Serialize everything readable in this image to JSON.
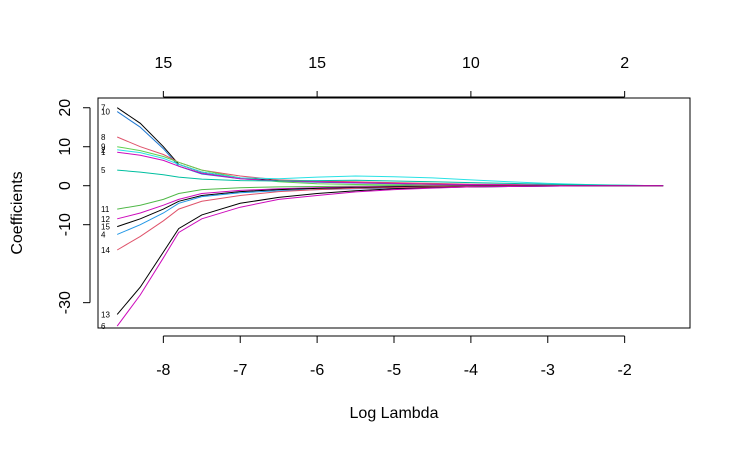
{
  "chart_data": {
    "type": "line",
    "title": "",
    "xlabel": "Log Lambda",
    "ylabel": "Coefficients",
    "xlim": [
      -8.85,
      -1.15
    ],
    "ylim": [
      -36.5,
      22.5
    ],
    "x_ticks": [
      -8,
      -7,
      -6,
      -5,
      -4,
      -3,
      -2
    ],
    "x_tick_labels": [
      "-8",
      "-7",
      "-6",
      "-5",
      "-4",
      "-3",
      "-2"
    ],
    "y_ticks": [
      20,
      10,
      0,
      -10,
      -30
    ],
    "y_tick_labels": [
      "20",
      "10",
      "0",
      "-10",
      "-30"
    ],
    "top_axis": {
      "positions": [
        -8,
        -6,
        -4,
        -2
      ],
      "labels": [
        "15",
        "15",
        "10",
        "2"
      ]
    },
    "grid": false,
    "legend": "none",
    "x": [
      -8.6,
      -8.3,
      -8.0,
      -7.8,
      -7.5,
      -7.0,
      -6.5,
      -6.0,
      -5.5,
      -5.0,
      -4.5,
      -4.0,
      -3.5,
      -3.0,
      -2.5,
      -2.0,
      -1.5
    ],
    "series": [
      {
        "label": "7",
        "color": "#000000",
        "label_y": 20.0,
        "values": [
          20.0,
          16.0,
          10.0,
          5.5,
          3.5,
          2.0,
          1.3,
          1.0,
          0.8,
          0.6,
          0.4,
          0.3,
          0.2,
          0.1,
          0.05,
          0.0,
          0.0
        ]
      },
      {
        "label": "10",
        "color": "#1f78d1",
        "label_y": 19.0,
        "values": [
          19.0,
          15.0,
          9.5,
          5.0,
          3.0,
          1.8,
          1.2,
          0.9,
          0.7,
          0.5,
          0.4,
          0.3,
          0.2,
          0.1,
          0.05,
          0.0,
          0.0
        ]
      },
      {
        "label": "8",
        "color": "#df536b",
        "label_y": 12.5,
        "values": [
          12.5,
          10.0,
          8.0,
          6.0,
          4.0,
          2.5,
          1.5,
          1.2,
          1.0,
          0.8,
          0.6,
          0.4,
          0.3,
          0.2,
          0.1,
          0.05,
          0.0
        ]
      },
      {
        "label": "9",
        "color": "#61d04f",
        "label_y": 10.0,
        "values": [
          10.0,
          9.0,
          7.5,
          6.0,
          4.0,
          2.0,
          1.0,
          0.5,
          0.3,
          0.2,
          0.1,
          0.0,
          0.0,
          0.0,
          0.0,
          0.0,
          0.0
        ]
      },
      {
        "label": "2",
        "color": "#28e2e5",
        "label_y": 9.2,
        "values": [
          9.2,
          8.5,
          7.0,
          5.5,
          3.5,
          2.0,
          1.8,
          2.2,
          2.5,
          2.3,
          2.0,
          1.5,
          1.0,
          0.6,
          0.3,
          0.1,
          0.0
        ]
      },
      {
        "label": "1",
        "color": "#cd0bbc",
        "label_y": 8.6,
        "values": [
          8.6,
          7.8,
          6.5,
          5.0,
          3.2,
          1.8,
          1.2,
          1.0,
          0.8,
          0.6,
          0.4,
          0.3,
          0.2,
          0.1,
          0.05,
          0.0,
          0.0
        ]
      },
      {
        "label": "5",
        "color": "#00bfa0",
        "label_y": 4.0,
        "values": [
          4.0,
          3.5,
          2.8,
          2.2,
          1.7,
          1.3,
          1.2,
          1.3,
          1.4,
          1.2,
          1.0,
          0.8,
          0.6,
          0.4,
          0.2,
          0.1,
          0.0
        ]
      },
      {
        "label": "11",
        "color": "#50b848",
        "label_y": -6.0,
        "values": [
          -6.0,
          -5.0,
          -3.5,
          -2.0,
          -1.0,
          -0.5,
          -0.3,
          -0.2,
          -0.1,
          0.0,
          0.0,
          0.0,
          0.0,
          0.0,
          0.0,
          0.0,
          0.0
        ]
      },
      {
        "label": "12",
        "color": "#cd0bbc",
        "label_y": -8.5,
        "values": [
          -8.5,
          -7.0,
          -5.0,
          -3.5,
          -2.0,
          -1.2,
          -0.8,
          -0.5,
          -0.3,
          -0.2,
          -0.1,
          0.0,
          0.0,
          0.0,
          0.0,
          0.0,
          0.0
        ]
      },
      {
        "label": "15",
        "color": "#000000",
        "label_y": -10.5,
        "values": [
          -10.5,
          -8.5,
          -6.0,
          -4.0,
          -2.5,
          -1.5,
          -1.0,
          -0.7,
          -0.5,
          -0.3,
          -0.2,
          -0.1,
          0.0,
          0.0,
          0.0,
          0.0,
          0.0
        ]
      },
      {
        "label": "4",
        "color": "#2297e6",
        "label_y": -12.5,
        "values": [
          -12.5,
          -10.0,
          -7.0,
          -4.5,
          -2.8,
          -1.8,
          -1.3,
          -1.0,
          -0.8,
          -0.6,
          -0.4,
          -0.3,
          -0.2,
          -0.1,
          -0.05,
          0.0,
          0.0
        ]
      },
      {
        "label": "14",
        "color": "#df536b",
        "label_y": -16.5,
        "values": [
          -16.5,
          -13.0,
          -9.0,
          -6.0,
          -4.0,
          -2.5,
          -1.5,
          -1.0,
          -0.7,
          -0.5,
          -0.3,
          -0.2,
          -0.1,
          0.0,
          0.0,
          0.0,
          0.0
        ]
      },
      {
        "label": "13",
        "color": "#000000",
        "label_y": -33.0,
        "values": [
          -33.0,
          -26.0,
          -17.0,
          -11.0,
          -7.5,
          -4.5,
          -3.0,
          -2.0,
          -1.3,
          -0.8,
          -0.5,
          -0.3,
          -0.2,
          -0.1,
          0.0,
          0.0,
          0.0
        ]
      },
      {
        "label": "6",
        "color": "#cd0bbc",
        "label_y": -36.0,
        "values": [
          -36.0,
          -28.0,
          -18.5,
          -12.0,
          -8.5,
          -5.5,
          -3.5,
          -2.5,
          -1.6,
          -1.0,
          -0.6,
          -0.3,
          -0.2,
          -0.1,
          0.0,
          0.0,
          0.0
        ]
      }
    ]
  }
}
